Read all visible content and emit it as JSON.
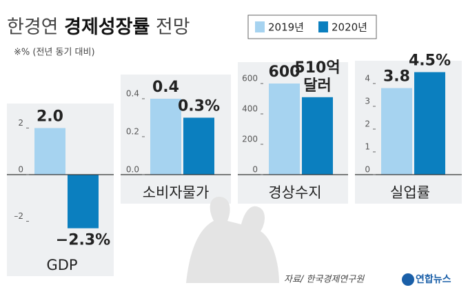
{
  "header": {
    "title": [
      "한경연",
      "경제성장률",
      "전망"
    ],
    "note": "※% (전년 동기 대비)"
  },
  "chart_data": [
    {
      "type": "bar",
      "x_label": "GDP",
      "ylim": [
        -2.5,
        2.5
      ],
      "yticks": [
        {
          "value": -2,
          "label": "–2"
        },
        0,
        2
      ],
      "series": [
        {
          "name": "2019년",
          "color": "#a6d3f0",
          "values": [
            2.0
          ],
          "value_labels": [
            "2.0"
          ]
        },
        {
          "name": "2020년",
          "color": "#0b7fbf",
          "values": [
            -2.3
          ],
          "value_labels": [
            "−2.3%"
          ]
        }
      ]
    },
    {
      "type": "bar",
      "x_label": "소비자물가",
      "ylim": [
        0,
        0.45
      ],
      "yticks": [
        {
          "value": 0,
          "label": "0.0"
        },
        0.2,
        0.4
      ],
      "series": [
        {
          "name": "2019년",
          "color": "#a6d3f0",
          "values": [
            0.4
          ]
        },
        {
          "name": "2020년",
          "color": "#0b7fbf",
          "values": [
            0.3
          ],
          "value_labels": [
            "0.3%"
          ]
        }
      ]
    },
    {
      "type": "bar",
      "x_label": "경상수지",
      "ylim": [
        0,
        650
      ],
      "yticks": [
        0,
        200,
        400,
        600
      ],
      "series": [
        {
          "name": "2019년",
          "color": "#a6d3f0",
          "values": [
            600
          ]
        },
        {
          "name": "2020년",
          "color": "#0b7fbf",
          "values": [
            510
          ],
          "value_labels": [
            "510억 달러"
          ]
        }
      ]
    },
    {
      "type": "bar",
      "x_label": "실업률",
      "ylim": [
        0,
        4.6
      ],
      "yticks": [
        0,
        1,
        2,
        3,
        4
      ],
      "series": [
        {
          "name": "2019년",
          "color": "#a6d3f0",
          "values": [
            3.8
          ]
        },
        {
          "name": "2020년",
          "color": "#0b7fbf",
          "values": [
            4.5
          ],
          "value_labels": [
            "4.5%"
          ]
        }
      ]
    }
  ],
  "source": "자료/ 한국경제연구원",
  "logo": "연합뉴스"
}
